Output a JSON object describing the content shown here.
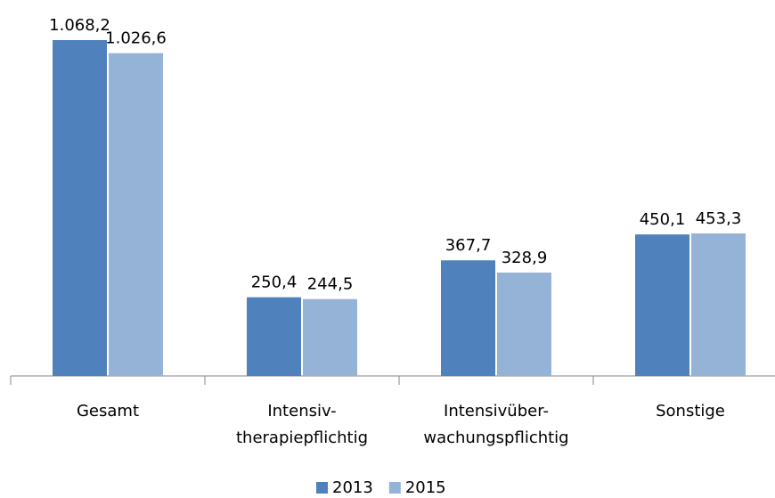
{
  "chart_data": {
    "type": "bar",
    "categories": [
      [
        "Gesamt"
      ],
      [
        "Intensiv-",
        "therapiepflichtig"
      ],
      [
        "Intensivüber-",
        "wachungspflichtig"
      ],
      [
        "Sonstige"
      ]
    ],
    "series": [
      {
        "name": "2013",
        "color": "#4f81bd",
        "values": [
          1068.2,
          250.4,
          367.7,
          450.1
        ],
        "value_labels": [
          "1.068,2",
          "250,4",
          "367,7",
          "450,1"
        ]
      },
      {
        "name": "2015",
        "color": "#95b3d7",
        "values": [
          1026.6,
          244.5,
          328.9,
          453.3
        ],
        "value_labels": [
          "1.026,6",
          "244,5",
          "328,9",
          "453,3"
        ]
      }
    ],
    "legend": "bottom"
  }
}
